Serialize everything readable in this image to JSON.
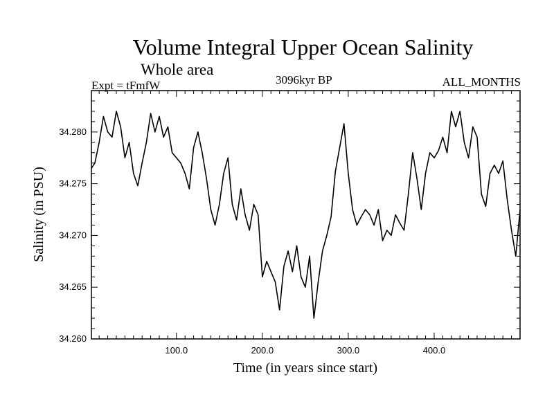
{
  "chart_data": {
    "type": "line",
    "title": "Volume Integral Upper Ocean Salinity",
    "subtitle": "Whole area",
    "annotations": {
      "left": "Expt = tFmfW",
      "center": "3096kyr BP",
      "right": "ALL_MONTHS"
    },
    "xlabel": "Time (in years since start)",
    "ylabel": "Salinity (in PSU)",
    "xlim": [
      1,
      500
    ],
    "ylim": [
      34.26,
      34.284
    ],
    "xticks": [
      100,
      200,
      300,
      400
    ],
    "xtick_labels": [
      "100.0",
      "200.0",
      "300.0",
      "400.0"
    ],
    "yticks": [
      34.26,
      34.265,
      34.27,
      34.275,
      34.28
    ],
    "ytick_labels": [
      "34.260",
      "34.265",
      "34.270",
      "34.275",
      "34.280"
    ],
    "grid": false,
    "series": [
      {
        "name": "Salinity",
        "color": "#000000",
        "x": [
          1,
          5,
          10,
          15,
          20,
          25,
          30,
          35,
          40,
          45,
          50,
          55,
          60,
          65,
          70,
          75,
          80,
          85,
          90,
          95,
          100,
          105,
          110,
          115,
          120,
          125,
          130,
          135,
          140,
          145,
          150,
          155,
          160,
          165,
          170,
          175,
          180,
          185,
          190,
          195,
          200,
          205,
          210,
          215,
          220,
          225,
          230,
          235,
          240,
          245,
          250,
          255,
          260,
          265,
          270,
          275,
          280,
          285,
          290,
          295,
          300,
          305,
          310,
          315,
          320,
          325,
          330,
          335,
          340,
          345,
          350,
          355,
          360,
          365,
          370,
          375,
          380,
          385,
          390,
          395,
          400,
          405,
          410,
          415,
          420,
          425,
          430,
          435,
          440,
          445,
          450,
          455,
          460,
          465,
          470,
          475,
          480,
          485,
          490,
          495,
          500
        ],
        "y": [
          34.2765,
          34.277,
          34.279,
          34.2815,
          34.28,
          34.2795,
          34.282,
          34.2805,
          34.2775,
          34.279,
          34.276,
          34.2748,
          34.277,
          34.279,
          34.2818,
          34.28,
          34.2815,
          34.2795,
          34.2805,
          34.278,
          34.2775,
          34.277,
          34.276,
          34.2745,
          34.2785,
          34.28,
          34.278,
          34.2755,
          34.2725,
          34.271,
          34.273,
          34.276,
          34.2775,
          34.273,
          34.2715,
          34.2745,
          34.272,
          34.2705,
          34.273,
          34.272,
          34.266,
          34.2675,
          34.2665,
          34.2655,
          34.2628,
          34.267,
          34.2685,
          34.2665,
          34.269,
          34.266,
          34.265,
          34.268,
          34.262,
          34.2655,
          34.2685,
          34.27,
          34.2718,
          34.2762,
          34.2785,
          34.2808,
          34.276,
          34.2725,
          34.271,
          34.2718,
          34.2725,
          34.272,
          34.271,
          34.2725,
          34.2695,
          34.2705,
          34.27,
          34.272,
          34.2712,
          34.2705,
          34.274,
          34.278,
          34.2755,
          34.2725,
          34.276,
          34.278,
          34.2775,
          34.2782,
          34.2795,
          34.278,
          34.282,
          34.2805,
          34.282,
          34.279,
          34.2775,
          34.2805,
          34.2795,
          34.274,
          34.2728,
          34.276,
          34.2768,
          34.276,
          34.2772,
          34.2735,
          34.2705,
          34.268,
          34.2725
        ]
      }
    ]
  }
}
